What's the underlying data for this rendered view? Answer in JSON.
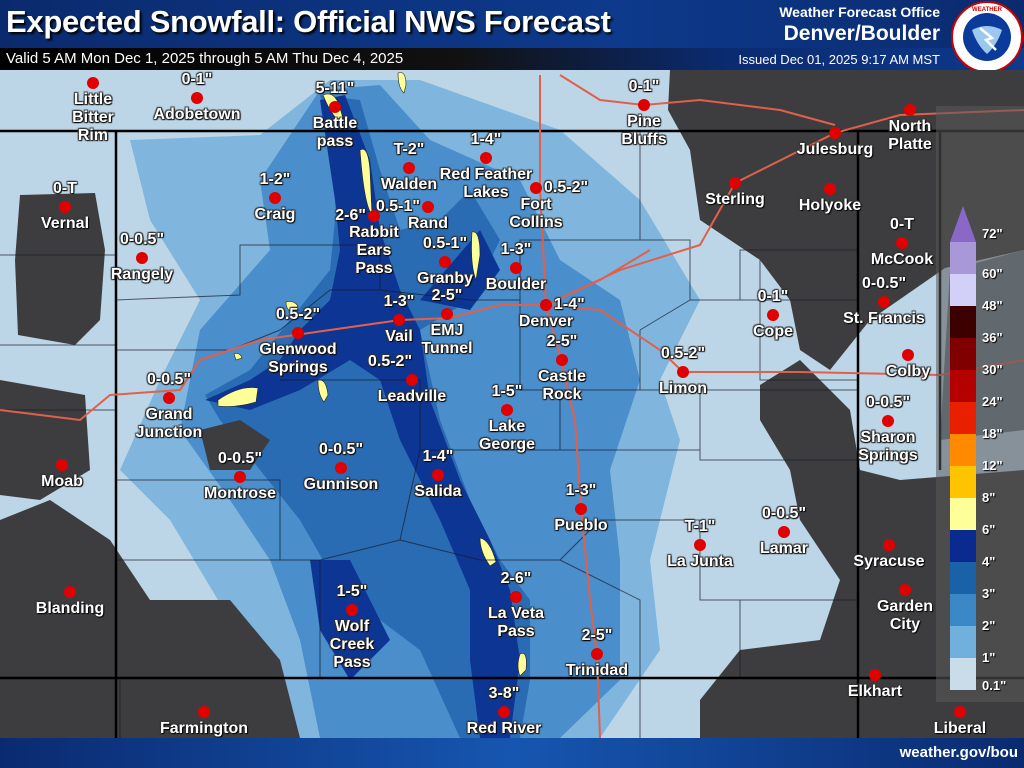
{
  "header": {
    "title": "Expected Snowfall: Official NWS Forecast",
    "valid": "Valid 5 AM Mon Dec 1, 2025 through 5 AM Thu Dec 4, 2025",
    "wfo_label": "Weather Forecast Office",
    "office": "Denver/Boulder",
    "issued": "Issued Dec 01, 2025 9:17 AM MST",
    "logo_text": "NATIONAL WEATHER SERVICE"
  },
  "footer": {
    "url": "weather.gov/bou"
  },
  "colors": {
    "dot": "#e00000",
    "road": "#e0604a",
    "outside_area": "#3d3d3f",
    "base": "#bcd6e8"
  },
  "cities": [
    {
      "name": "Little\nBitter\nRim",
      "amount": ""
    },
    {
      "name": "Adobetown",
      "amount": "0-1\""
    },
    {
      "name": "Vernal",
      "amount": "0-T"
    },
    {
      "name": "Rangely",
      "amount": "0-0.5\""
    },
    {
      "name": "Grand\nJunction",
      "amount": "0-0.5\""
    },
    {
      "name": "Moab",
      "amount": ""
    },
    {
      "name": "Blanding",
      "amount": ""
    },
    {
      "name": "Farmington",
      "amount": ""
    },
    {
      "name": "Montrose",
      "amount": "0-0.5\""
    },
    {
      "name": "Gunnison",
      "amount": "0-0.5\""
    },
    {
      "name": "Glenwood\nSprings",
      "amount": "0.5-2\""
    },
    {
      "name": "Craig",
      "amount": "1-2\""
    },
    {
      "name": "Battle\npass",
      "amount": "5-11\""
    },
    {
      "name": "Rabbit\nEars\nPass",
      "amount": "2-6\""
    },
    {
      "name": "Walden",
      "amount": "T-2\""
    },
    {
      "name": "Rand",
      "amount": "0.5-1\""
    },
    {
      "name": "Red Feather\nLakes",
      "amount": "1-4\""
    },
    {
      "name": "Fort\nCollins",
      "amount": "0.5-2\""
    },
    {
      "name": "Granby",
      "amount": "0.5-1\""
    },
    {
      "name": "Boulder",
      "amount": "1-3\""
    },
    {
      "name": "Denver",
      "amount": "1-4\""
    },
    {
      "name": "Vail",
      "amount": "1-3\""
    },
    {
      "name": "EMJ\nTunnel",
      "amount": "2-5\""
    },
    {
      "name": "Leadville",
      "amount": "0.5-2\""
    },
    {
      "name": "Castle\nRock",
      "amount": "2-5\""
    },
    {
      "name": "Lake\nGeorge",
      "amount": "1-5\""
    },
    {
      "name": "Salida",
      "amount": "1-4\""
    },
    {
      "name": "Pueblo",
      "amount": "1-3\""
    },
    {
      "name": "La Veta\nPass",
      "amount": "2-6\""
    },
    {
      "name": "Trinidad",
      "amount": "2-5\""
    },
    {
      "name": "Red River",
      "amount": "3-8\""
    },
    {
      "name": "Wolf\nCreek\nPass",
      "amount": "1-5\""
    },
    {
      "name": "Pine\nBluffs",
      "amount": "0-1\""
    },
    {
      "name": "Julesburg",
      "amount": ""
    },
    {
      "name": "Sterling",
      "amount": ""
    },
    {
      "name": "Holyoke",
      "amount": ""
    },
    {
      "name": "Cope",
      "amount": "0-1\""
    },
    {
      "name": "St. Francis",
      "amount": "0-0.5\""
    },
    {
      "name": "Limon",
      "amount": "0.5-2\""
    },
    {
      "name": "Sharon\nSprings",
      "amount": "0-0.5\""
    },
    {
      "name": "La Junta",
      "amount": "T-1\""
    },
    {
      "name": "Lamar",
      "amount": "0-0.5\""
    },
    {
      "name": "Syracuse",
      "amount": ""
    },
    {
      "name": "Elkhart",
      "amount": ""
    },
    {
      "name": "North\nPlatte",
      "amount": ""
    },
    {
      "name": "McCook",
      "amount": "0-T"
    },
    {
      "name": "Colby",
      "amount": ""
    },
    {
      "name": "Garden\nCity",
      "amount": ""
    },
    {
      "name": "Liberal",
      "amount": ""
    }
  ],
  "legend": {
    "unit": "inches",
    "bins": [
      {
        "label": "0.1\"",
        "color": "#c8dcea"
      },
      {
        "label": "1\"",
        "color": "#70b0dc"
      },
      {
        "label": "2\"",
        "color": "#3a88c6"
      },
      {
        "label": "3\"",
        "color": "#1a62a8"
      },
      {
        "label": "4\"",
        "color": "#0a2a90"
      },
      {
        "label": "6\"",
        "color": "#ffff9a"
      },
      {
        "label": "8\"",
        "color": "#ffc400"
      },
      {
        "label": "12\"",
        "color": "#ff8a00"
      },
      {
        "label": "18\"",
        "color": "#e82000"
      },
      {
        "label": "24\"",
        "color": "#b40000"
      },
      {
        "label": "30\"",
        "color": "#800000"
      },
      {
        "label": "36\"",
        "color": "#3c0000"
      },
      {
        "label": "48\"",
        "color": "#d2d0f8"
      },
      {
        "label": "60\"",
        "color": "#a898d8"
      },
      {
        "label": "72\"",
        "color": "#8a68c8"
      }
    ]
  }
}
